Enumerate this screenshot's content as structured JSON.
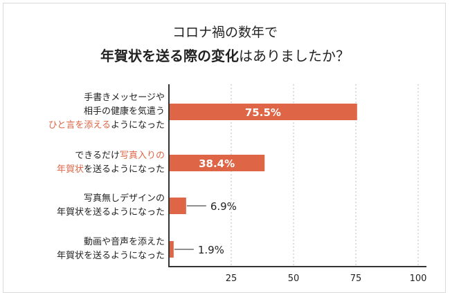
{
  "chart_data": {
    "type": "bar",
    "orientation": "horizontal",
    "title_line1": "コロナ禍の数年で",
    "title_line2_bold": "年賀状を送る際の変化",
    "title_line2_rest": "はありましたか？",
    "categories": [
      {
        "lines": [
          [
            {
              "text": "手書きメッセージや",
              "hl": false
            }
          ],
          [
            {
              "text": "相手の健康を気遣う",
              "hl": false
            }
          ],
          [
            {
              "text": "ひと言を添える",
              "hl": true
            },
            {
              "text": "ようになった",
              "hl": false
            }
          ]
        ]
      },
      {
        "lines": [
          [
            {
              "text": "できるだけ",
              "hl": false
            },
            {
              "text": "写真入りの",
              "hl": true
            }
          ],
          [
            {
              "text": "年賀状",
              "hl": true
            },
            {
              "text": "を送るようになった",
              "hl": false
            }
          ]
        ]
      },
      {
        "lines": [
          [
            {
              "text": "写真無しデザインの",
              "hl": false
            }
          ],
          [
            {
              "text": "年賀状を送るようになった",
              "hl": false
            }
          ]
        ]
      },
      {
        "lines": [
          [
            {
              "text": "動画や音声を添えた",
              "hl": false
            }
          ],
          [
            {
              "text": "年賀状を送るようになった",
              "hl": false
            }
          ]
        ]
      }
    ],
    "values": [
      75.5,
      38.4,
      6.9,
      1.9
    ],
    "value_labels": [
      "75.5%",
      "38.4%",
      "6.9%",
      "1.9%"
    ],
    "xlim": [
      0,
      100
    ],
    "xticks": [
      25,
      50,
      75,
      100
    ],
    "tick_labels": [
      "25",
      "50",
      "75",
      "100"
    ],
    "grid": "dotted-vertical",
    "bar_color": "#de6545",
    "highlight_color": "#de6545",
    "axis_color": "#333333",
    "grid_color": "#bbbbbb"
  }
}
